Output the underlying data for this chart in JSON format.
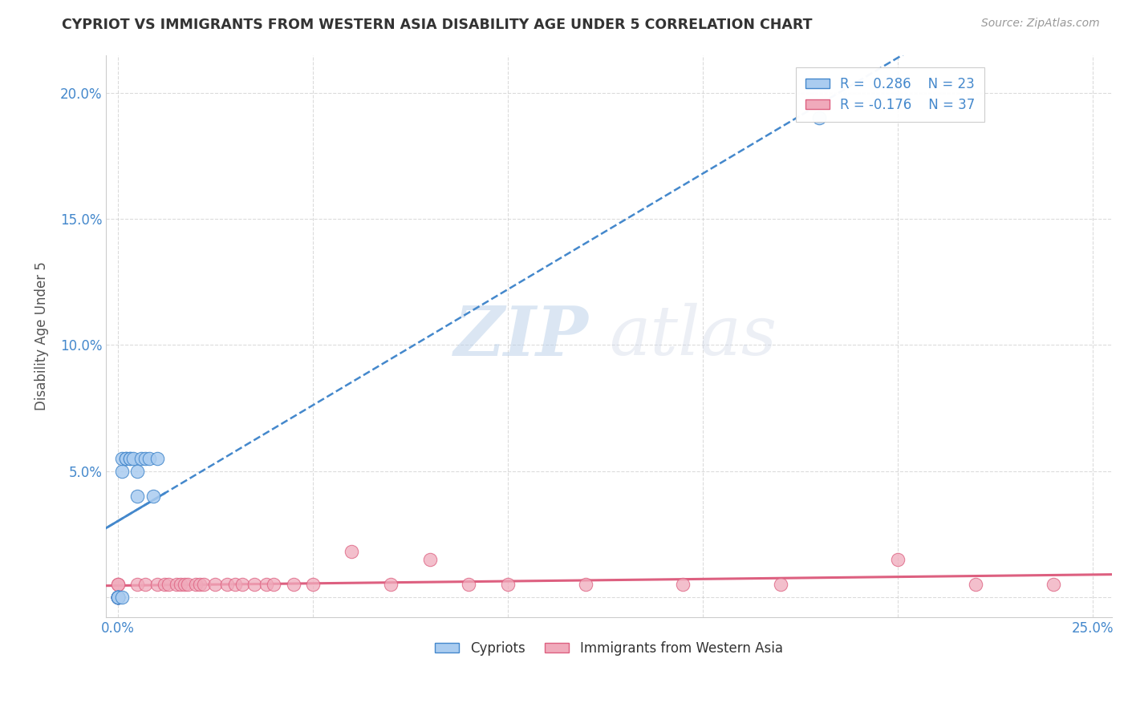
{
  "title": "CYPRIOT VS IMMIGRANTS FROM WESTERN ASIA DISABILITY AGE UNDER 5 CORRELATION CHART",
  "source": "Source: ZipAtlas.com",
  "ylabel": "Disability Age Under 5",
  "xlim": [
    -0.003,
    0.255
  ],
  "ylim": [
    -0.008,
    0.215
  ],
  "xtick_positions": [
    0.0,
    0.05,
    0.1,
    0.15,
    0.2,
    0.25
  ],
  "xtick_labels": [
    "0.0%",
    "",
    "",
    "",
    "",
    "25.0%"
  ],
  "ytick_positions": [
    0.0,
    0.05,
    0.1,
    0.15,
    0.2
  ],
  "ytick_labels": [
    "",
    "5.0%",
    "10.0%",
    "15.0%",
    "20.0%"
  ],
  "legend1_label": "R =  0.286    N = 23",
  "legend2_label": "R = -0.176    N = 37",
  "legend_bottom_label1": "Cypriots",
  "legend_bottom_label2": "Immigrants from Western Asia",
  "cypriot_color": "#aaccf0",
  "immigrant_color": "#f0aabb",
  "cypriot_line_color": "#4488cc",
  "immigrant_line_color": "#dd6080",
  "watermark_text": "ZIPatlas",
  "background_color": "#ffffff",
  "grid_color": "#cccccc",
  "cypriot_x": [
    0.0,
    0.0,
    0.0,
    0.0,
    0.0,
    0.0,
    0.0,
    0.001,
    0.001,
    0.001,
    0.002,
    0.002,
    0.003,
    0.003,
    0.004,
    0.005,
    0.005,
    0.006,
    0.007,
    0.008,
    0.009,
    0.01,
    0.18
  ],
  "cypriot_y": [
    0.0,
    0.0,
    0.0,
    0.0,
    0.0,
    0.0,
    0.0,
    0.0,
    0.05,
    0.055,
    0.055,
    0.055,
    0.055,
    0.055,
    0.055,
    0.04,
    0.05,
    0.055,
    0.055,
    0.055,
    0.04,
    0.055,
    0.19
  ],
  "immigrant_x": [
    0.0,
    0.0,
    0.0,
    0.0,
    0.0,
    0.005,
    0.007,
    0.01,
    0.012,
    0.013,
    0.015,
    0.016,
    0.017,
    0.018,
    0.02,
    0.021,
    0.022,
    0.025,
    0.028,
    0.03,
    0.032,
    0.035,
    0.038,
    0.04,
    0.045,
    0.05,
    0.06,
    0.07,
    0.08,
    0.09,
    0.1,
    0.12,
    0.145,
    0.17,
    0.2,
    0.22,
    0.24
  ],
  "immigrant_y": [
    0.0,
    0.0,
    0.0,
    0.005,
    0.005,
    0.005,
    0.005,
    0.005,
    0.005,
    0.005,
    0.005,
    0.005,
    0.005,
    0.005,
    0.005,
    0.005,
    0.005,
    0.005,
    0.005,
    0.005,
    0.005,
    0.005,
    0.005,
    0.005,
    0.005,
    0.005,
    0.018,
    0.005,
    0.015,
    0.005,
    0.005,
    0.005,
    0.005,
    0.005,
    0.015,
    0.005,
    0.005
  ]
}
